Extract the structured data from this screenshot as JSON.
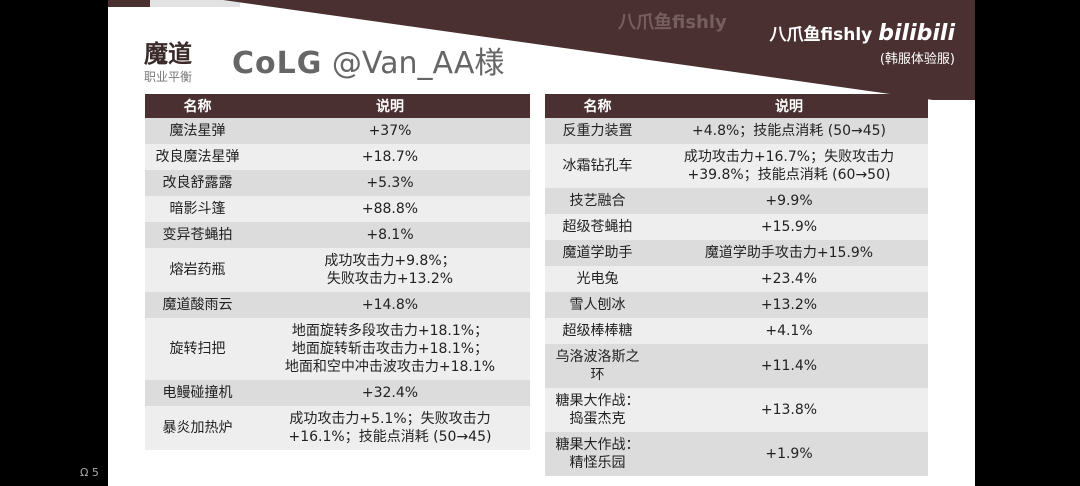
{
  "header": {
    "title": "魔道",
    "subtitle": "职业平衡"
  },
  "brand": {
    "name": "八爪鱼fishly",
    "logo": "bilibili",
    "server": "(韩服体验服)"
  },
  "watermark": "八爪鱼fishly",
  "overlay": {
    "badge": "CoLG",
    "handle": "@Van_AA様"
  },
  "corner": {
    "icon": "headset-icon",
    "count": "5"
  },
  "colors": {
    "header": "#4a3030",
    "row_a": "#dcdcdc",
    "row_b": "#eeeeee"
  },
  "left_table": {
    "columns": [
      "名称",
      "说明"
    ],
    "rows": [
      [
        "魔法星弹",
        "+37%"
      ],
      [
        "改良魔法星弹",
        "+18.7%"
      ],
      [
        "改良舒露露",
        "+5.3%"
      ],
      [
        "暗影斗篷",
        "+88.8%"
      ],
      [
        "变异苍蝇拍",
        "+8.1%"
      ],
      [
        "熔岩药瓶",
        "成功攻击力+9.8%；\n失败攻击力+13.2%"
      ],
      [
        "魔道酸雨云",
        "+14.8%"
      ],
      [
        "旋转扫把",
        "地面旋转多段攻击力+18.1%；\n地面旋转斩击攻击力+18.1%；\n地面和空中冲击波攻击力+18.1%"
      ],
      [
        "电鳗碰撞机",
        "+32.4%"
      ],
      [
        "暴炎加热炉",
        "成功攻击力+5.1%；失败攻击力\n+16.1%；技能点消耗 (50→45)"
      ]
    ]
  },
  "right_table": {
    "columns": [
      "名称",
      "说明"
    ],
    "rows": [
      [
        "反重力装置",
        "+4.8%；技能点消耗 (50→45)"
      ],
      [
        "冰霜钻孔车",
        "成功攻击力+16.7%；失败攻击力\n+39.8%；技能点消耗 (60→50)"
      ],
      [
        "技艺融合",
        "+9.9%"
      ],
      [
        "超级苍蝇拍",
        "+15.9%"
      ],
      [
        "魔道学助手",
        "魔道学助手攻击力+15.9%"
      ],
      [
        "光电兔",
        "+23.4%"
      ],
      [
        "雪人刨冰",
        "+13.2%"
      ],
      [
        "超级棒棒糖",
        "+4.1%"
      ],
      [
        "乌洛波洛斯之环",
        "+11.4%"
      ],
      [
        "糖果大作战：\n捣蛋杰克",
        "+13.8%"
      ],
      [
        "糖果大作战：\n精怪乐园",
        "+1.9%"
      ]
    ]
  }
}
